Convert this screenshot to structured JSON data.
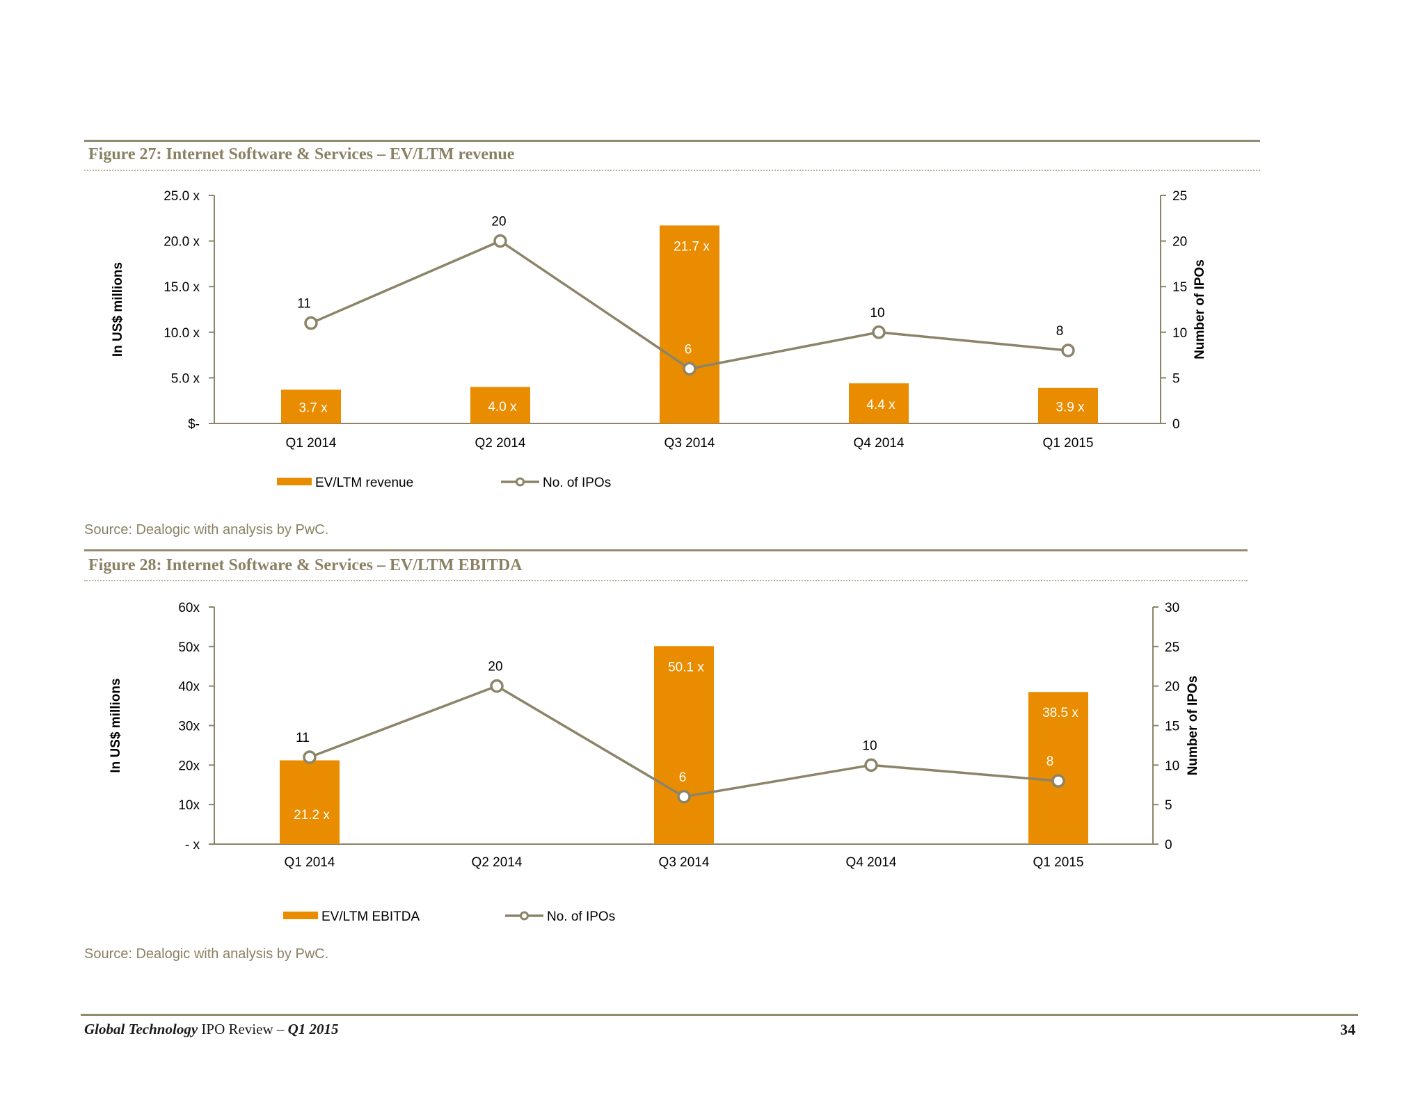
{
  "figures": [
    {
      "title": "Figure 27: Internet Software & Services – EV/LTM revenue",
      "source": "Source: Dealogic with analysis by PwC."
    },
    {
      "title": "Figure 28: Internet Software & Services – EV/LTM EBITDA",
      "source": "Source: Dealogic with analysis by PwC."
    }
  ],
  "colors": {
    "bar": "#EA8C00",
    "line": "#8C8468",
    "axis": "#8C8468",
    "text": "#000000",
    "bar_label": "#ffffff"
  },
  "chart_data": [
    {
      "type": "bar",
      "categories": [
        "Q1 2014",
        "Q2 2014",
        "Q3 2014",
        "Q4 2014",
        "Q1 2015"
      ],
      "series": [
        {
          "name": "EV/LTM revenue",
          "type": "bar",
          "axis": "left",
          "values": [
            3.7,
            4.0,
            21.7,
            4.4,
            3.9
          ],
          "labels": [
            "3.7 x",
            "4.0 x",
            "21.7 x",
            "4.4 x",
            "3.9 x"
          ]
        },
        {
          "name": "No. of IPOs",
          "type": "line",
          "axis": "right",
          "values": [
            11,
            20,
            6,
            10,
            8
          ],
          "labels": [
            "11",
            "20",
            "6",
            "10",
            "8"
          ]
        }
      ],
      "ylabel": "In US$ millions",
      "ylabel_right": "Number of IPOs",
      "ylim": [
        0,
        25
      ],
      "ylim_right": [
        0,
        25
      ],
      "yticks": [
        "$-",
        "5.0 x",
        "10.0 x",
        "15.0 x",
        "20.0 x",
        "25.0 x"
      ],
      "yticks_right": [
        "0",
        "5",
        "10",
        "15",
        "20",
        "25"
      ],
      "legend": [
        "EV/LTM revenue",
        "No. of IPOs"
      ],
      "legend_position": "bottom",
      "grid": false
    },
    {
      "type": "bar",
      "categories": [
        "Q1 2014",
        "Q2 2014",
        "Q3 2014",
        "Q4 2014",
        "Q1 2015"
      ],
      "series": [
        {
          "name": "EV/LTM EBITDA",
          "type": "bar",
          "axis": "left",
          "values": [
            21.2,
            0,
            50.1,
            0,
            38.5
          ],
          "labels": [
            "21.2 x",
            "",
            "50.1 x",
            "",
            "38.5 x"
          ]
        },
        {
          "name": "No. of IPOs",
          "type": "line",
          "axis": "right",
          "values": [
            11,
            20,
            6,
            10,
            8
          ],
          "labels": [
            "11",
            "20",
            "6",
            "10",
            "8"
          ]
        }
      ],
      "ylabel": "In US$ millions",
      "ylabel_right": "Number of IPOs",
      "ylim": [
        0,
        60
      ],
      "ylim_right": [
        0,
        30
      ],
      "yticks": [
        "- x",
        "10x",
        "20x",
        "30x",
        "40x",
        "50x",
        "60x"
      ],
      "yticks_right": [
        "0",
        "5",
        "10",
        "15",
        "20",
        "25",
        "30"
      ],
      "legend": [
        "EV/LTM EBITDA",
        "No. of IPOs"
      ],
      "legend_position": "bottom",
      "grid": false
    }
  ],
  "footer": {
    "title_bold": "Global Technology",
    "title_mid": " IPO Review – ",
    "title_period": "Q1 2015",
    "page": "34"
  }
}
